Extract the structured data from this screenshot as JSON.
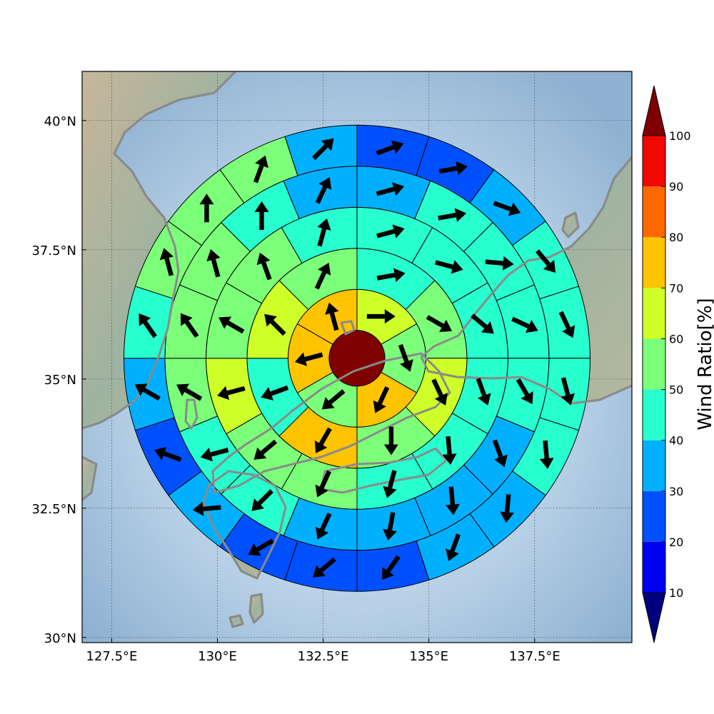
{
  "chart_data": {
    "type": "heatmap",
    "projection": "lat-lon map with polar-sector overlay",
    "x_axis": {
      "ticks": [
        127.5,
        130,
        132.5,
        135,
        137.5
      ],
      "tick_labels": [
        "127.5°E",
        "130°E",
        "132.5°E",
        "135°E",
        "137.5°E"
      ],
      "range": [
        126.8,
        139.8
      ]
    },
    "y_axis": {
      "ticks": [
        30,
        32.5,
        35,
        37.5,
        40
      ],
      "tick_labels": [
        "30°N",
        "32.5°N",
        "35°N",
        "37.5°N",
        "40°N"
      ],
      "range": [
        29.9,
        40.95
      ]
    },
    "grid": true,
    "center": {
      "lon": 133.3,
      "lat": 35.4
    },
    "center_value": 100,
    "rings": [
      {
        "sectors": 6,
        "values": [
          65,
          55,
          72,
          55,
          78,
          78
        ]
      },
      {
        "sectors": 8,
        "values": [
          48,
          52,
          60,
          55,
          72,
          45,
          60,
          50
        ]
      },
      {
        "sectors": 12,
        "values": [
          43,
          48,
          42,
          45,
          43,
          48,
          58,
          55,
          60,
          52,
          55,
          43
        ]
      },
      {
        "sectors": 16,
        "values": [
          34,
          40,
          42,
          43,
          42,
          38,
          35,
          34,
          38,
          42,
          45,
          55,
          58,
          52,
          44,
          36
        ]
      },
      {
        "sectors": 20,
        "values": [
          22,
          24,
          36,
          42,
          42,
          46,
          46,
          35,
          30,
          20,
          20,
          20,
          30,
          25,
          35,
          42,
          52,
          55,
          50,
          35
        ]
      }
    ],
    "wind_directions_deg": [
      [
        90,
        160,
        205,
        230,
        255,
        345
      ],
      [
        80,
        120,
        155,
        180,
        210,
        250,
        315,
        25
      ],
      [
        75,
        105,
        130,
        160,
        175,
        195,
        205,
        230,
        255,
        300,
        340,
        15
      ],
      [
        75,
        80,
        95,
        115,
        150,
        160,
        175,
        190,
        205,
        225,
        255,
        300,
        325,
        345,
        0,
        25
      ],
      [
        70,
        80,
        110,
        140,
        155,
        165,
        175,
        185,
        200,
        215,
        230,
        240,
        265,
        290,
        300,
        325,
        345,
        0,
        20,
        45
      ]
    ],
    "colorbar": {
      "label": "Wind Ratio[%]",
      "ticks": [
        10,
        20,
        30,
        40,
        50,
        60,
        70,
        80,
        90,
        100
      ],
      "bins": [
        0,
        10,
        20,
        30,
        40,
        50,
        60,
        70,
        80,
        90,
        100
      ],
      "colors": [
        "#00007f",
        "#0000f0",
        "#0050ff",
        "#00b0ff",
        "#28ffce",
        "#7cff79",
        "#ceff29",
        "#ffc400",
        "#ff6800",
        "#f10800",
        "#7f0000"
      ],
      "extend": "both"
    },
    "map_colors": {
      "sea": "#a9c6df",
      "land": "#a5b39a",
      "coast": "#8a8a8a"
    }
  }
}
